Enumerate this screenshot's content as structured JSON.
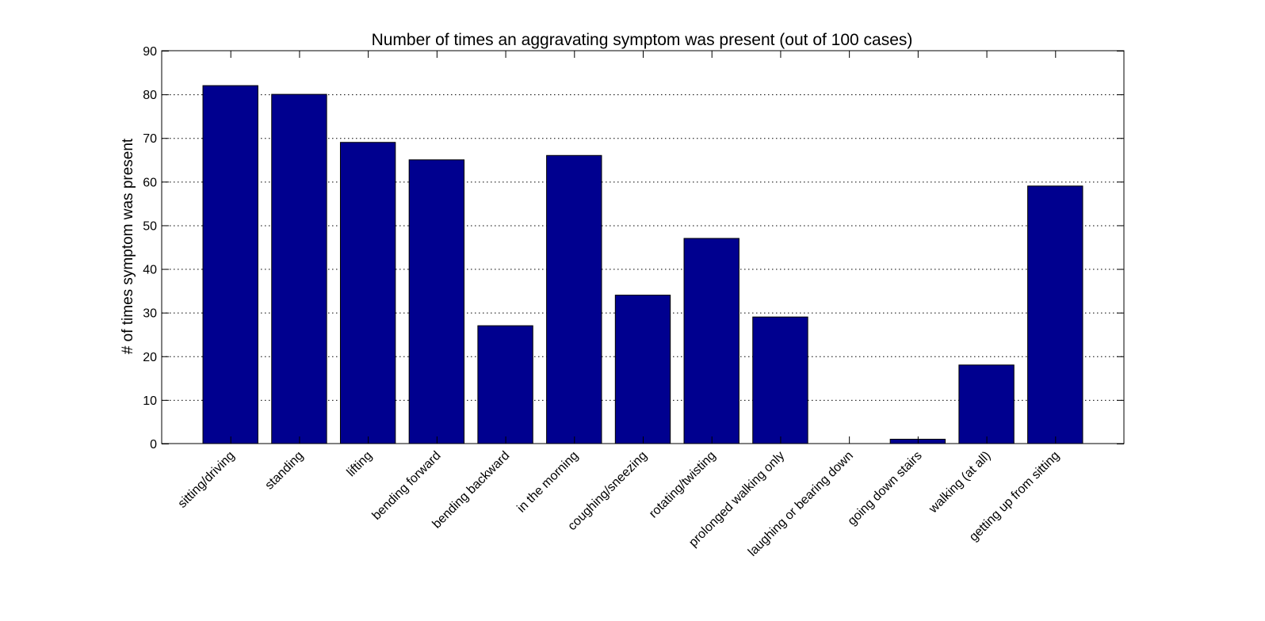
{
  "chart_data": {
    "type": "bar",
    "title": "Number of times an aggravating symptom was present (out of 100 cases)",
    "xlabel": "",
    "ylabel": "# of times symptom was present",
    "categories": [
      "sitting/driving",
      "standing",
      "lifting",
      "bending forward",
      "bending backward",
      "in the morning",
      "coughing/sneezing",
      "rotating/twisting",
      "prolonged walking only",
      "laughing or bearing down",
      "going down stairs",
      "walking (at all)",
      "getting up from sitting"
    ],
    "values": [
      82,
      80,
      69,
      65,
      27,
      66,
      34,
      47,
      29,
      0,
      1,
      18,
      59
    ],
    "ylim": [
      0,
      90
    ],
    "yticks": [
      0,
      10,
      20,
      30,
      40,
      50,
      60,
      70,
      80,
      90
    ],
    "grid": true,
    "legend": false,
    "colors": {
      "bar_fill": "#00008f",
      "bar_stroke": "#000000",
      "axis": "#000000",
      "grid": "#000000"
    }
  }
}
